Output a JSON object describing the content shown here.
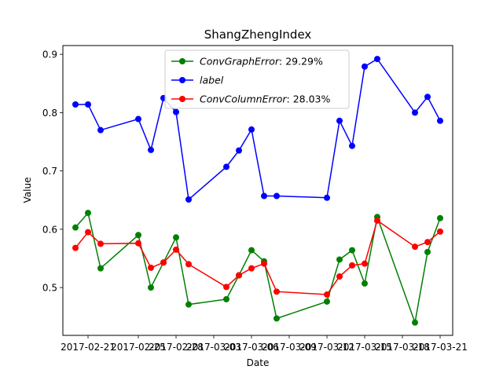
{
  "chart_data": {
    "type": "line",
    "title": "ShangZhengIndex",
    "xlabel": "Date",
    "ylabel": "Value",
    "x": [
      "2017-02-20",
      "2017-02-21",
      "2017-02-22",
      "2017-02-25",
      "2017-02-26",
      "2017-02-27",
      "2017-02-28",
      "2017-03-01",
      "2017-03-04",
      "2017-03-05",
      "2017-03-06",
      "2017-03-07",
      "2017-03-08",
      "2017-03-12",
      "2017-03-13",
      "2017-03-14",
      "2017-03-15",
      "2017-03-16",
      "2017-03-19",
      "2017-03-20",
      "2017-03-21"
    ],
    "x_ticks": [
      "2017-02-21",
      "2017-02-25",
      "2017-02-28",
      "2017-03-03",
      "2017-03-06",
      "2017-03-09",
      "2017-03-12",
      "2017-03-15",
      "2017-03-18",
      "2017-03-21"
    ],
    "x_tick_labels": [
      "2017-02-21",
      "2017-02-25",
      "2017-02-28",
      "2017-03-03",
      "2017-03-06",
      "2017-03-09",
      "2017-03-12",
      "2017-03-15",
      "2017-03-18",
      "2017-03-21"
    ],
    "x_range": [
      "2017-02-19",
      "2017-03-22"
    ],
    "yticks": [
      0.5,
      0.6,
      0.7,
      0.8,
      0.9
    ],
    "ylim": [
      0.418,
      0.915
    ],
    "grid": false,
    "legend_position": "top-center",
    "series": [
      {
        "name": "ConvGraphError: 29.29%",
        "legend_math": "ConvGraphError",
        "legend_value": ": 29.29%",
        "color": "#008000",
        "values": [
          0.603,
          0.628,
          0.533,
          0.59,
          0.5,
          0.543,
          0.586,
          0.471,
          0.48,
          0.521,
          0.564,
          0.545,
          0.447,
          0.476,
          0.548,
          0.564,
          0.507,
          0.621,
          0.44,
          0.561,
          0.619
        ]
      },
      {
        "name": "label",
        "legend_math": "label",
        "legend_value": "",
        "color": "#0000ff",
        "values": [
          0.814,
          0.814,
          0.77,
          0.789,
          0.736,
          0.825,
          0.801,
          0.651,
          0.707,
          0.735,
          0.771,
          0.657,
          0.657,
          0.654,
          0.786,
          0.743,
          0.879,
          0.892,
          0.8,
          0.827,
          0.786
        ]
      },
      {
        "name": "ConvColumnError: 28.03%",
        "legend_math": "ConvColumnError",
        "legend_value": ": 28.03%",
        "color": "#ff0000",
        "values": [
          0.568,
          0.595,
          0.575,
          0.576,
          0.534,
          0.543,
          0.565,
          0.54,
          0.501,
          0.521,
          0.533,
          0.541,
          0.493,
          0.488,
          0.519,
          0.538,
          0.541,
          0.615,
          0.57,
          0.578,
          0.596
        ]
      }
    ]
  }
}
